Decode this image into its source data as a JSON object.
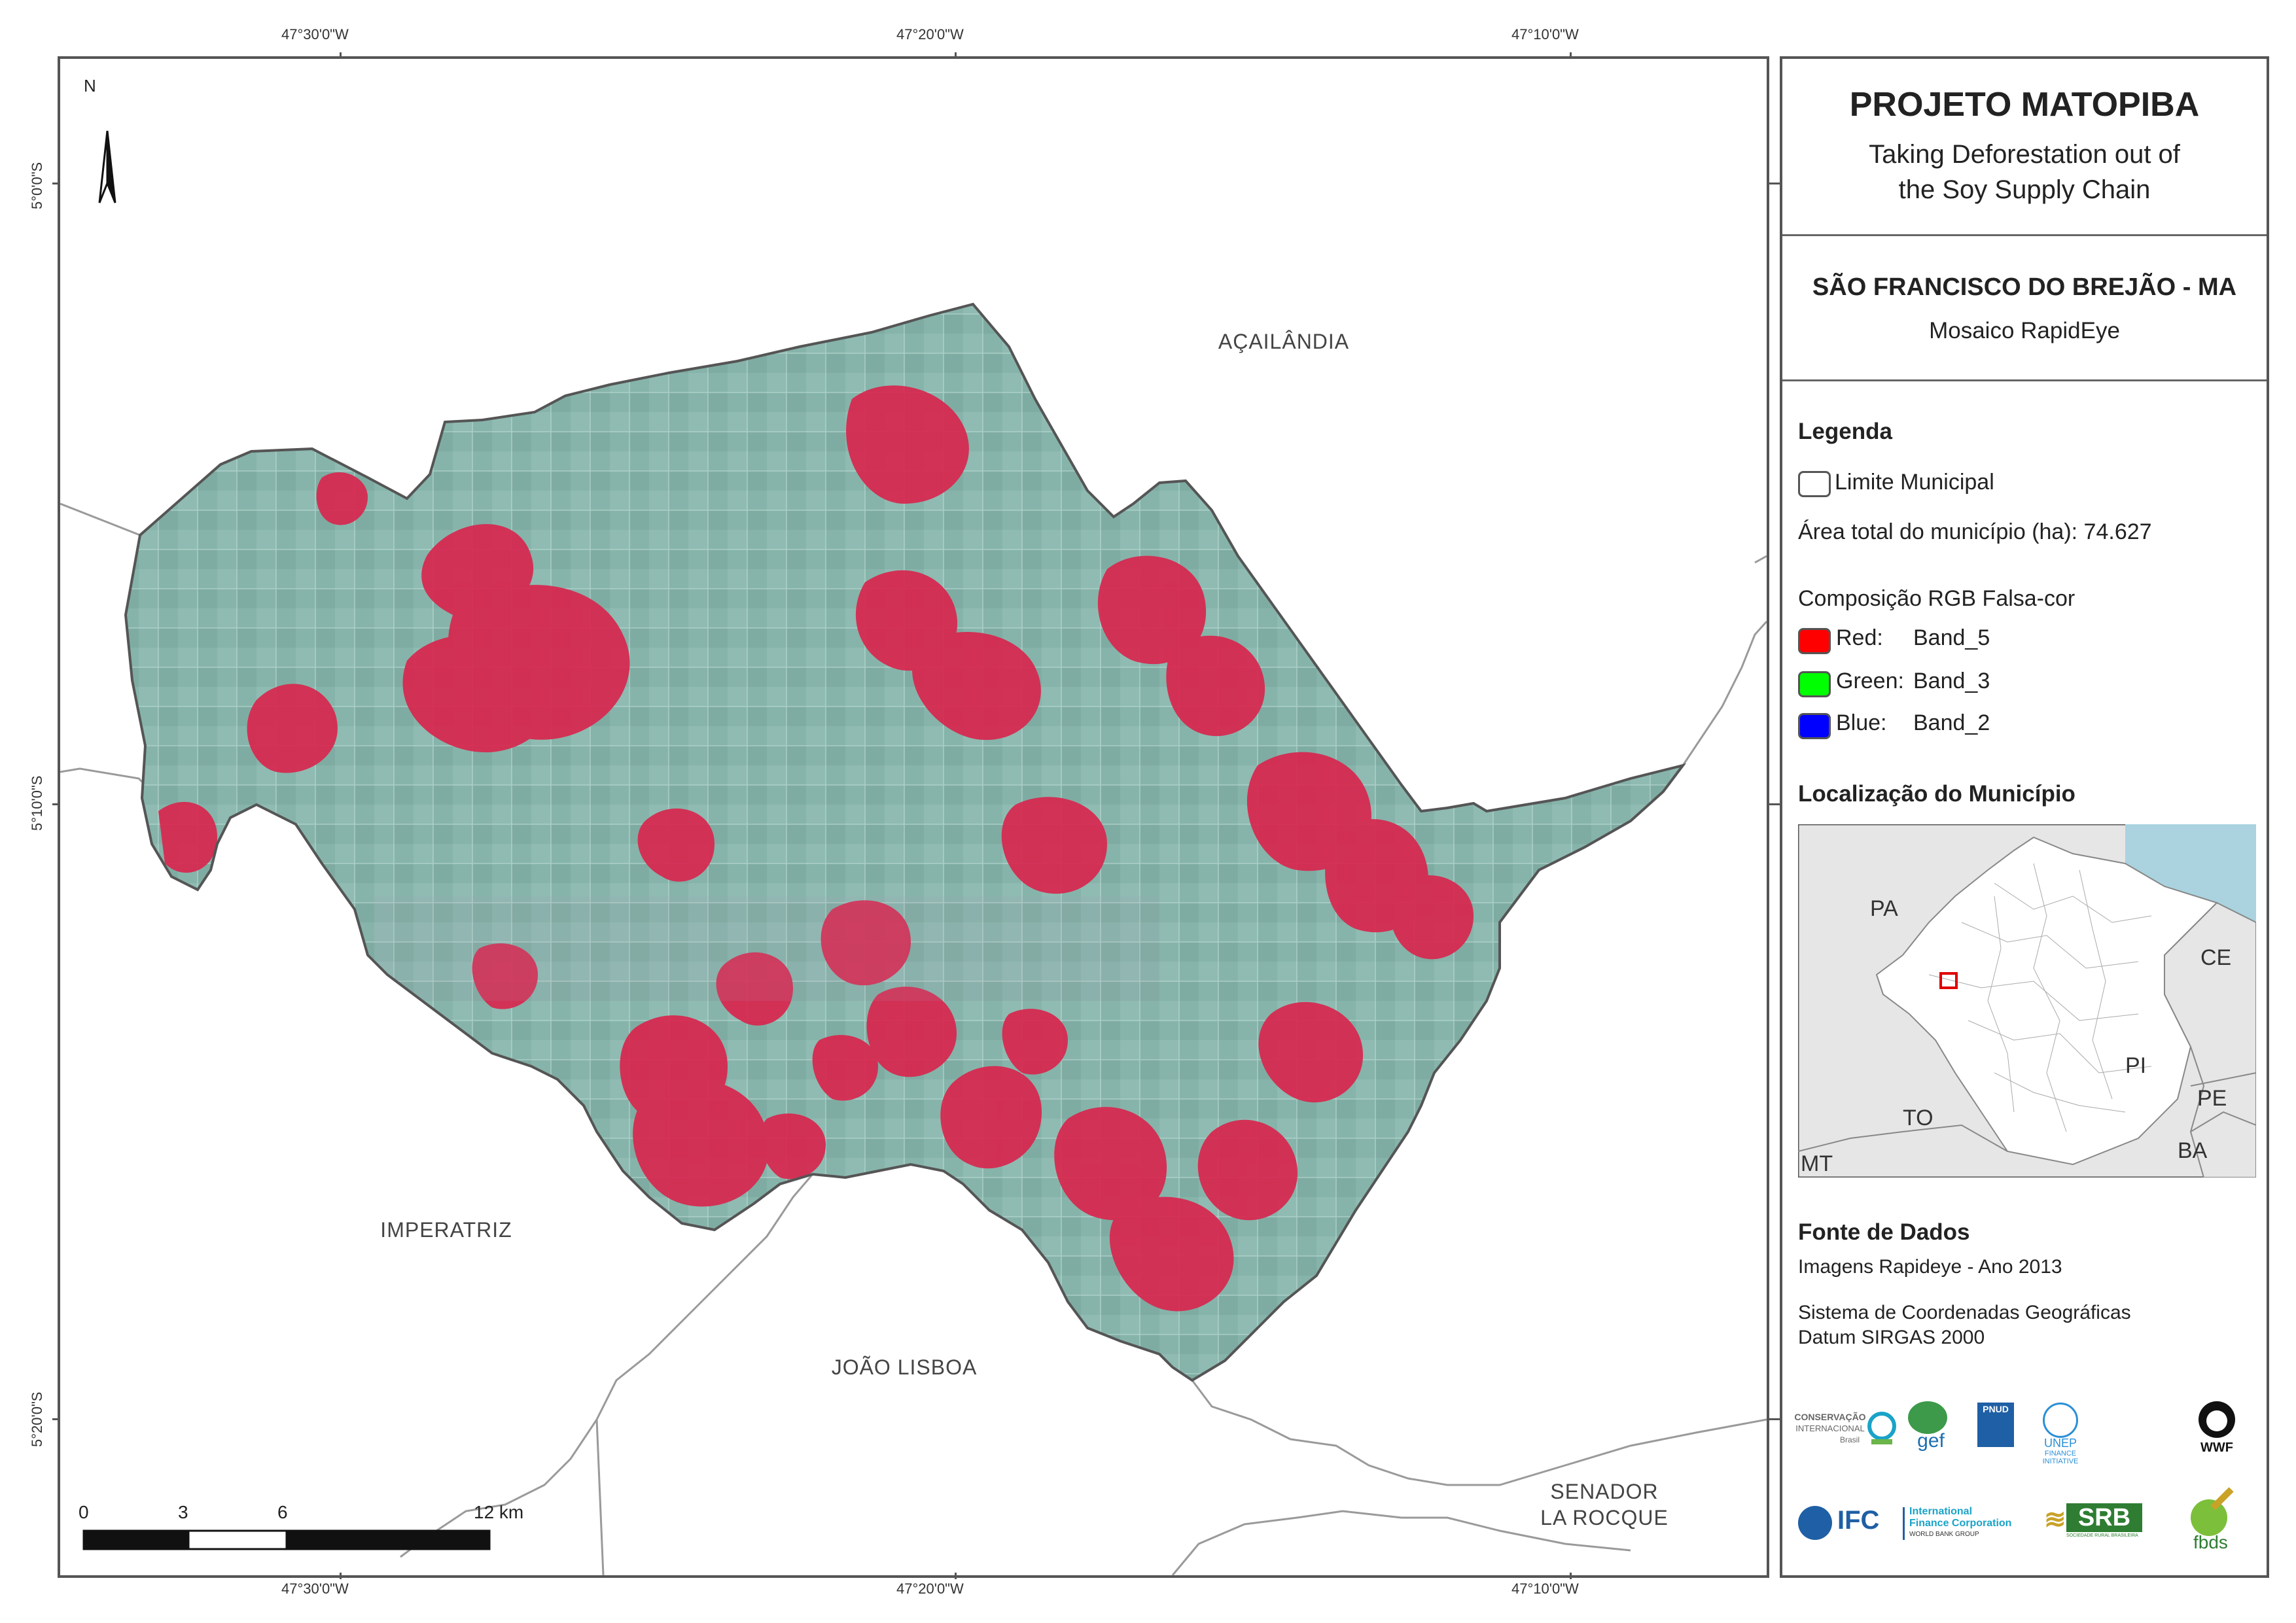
{
  "coords": {
    "top": [
      "47°30'0\"W",
      "47°20'0\"W",
      "47°10'0\"W"
    ],
    "bottom": [
      "47°30'0\"W",
      "47°20'0\"W",
      "47°10'0\"W"
    ],
    "left": [
      "5°0'0\"S",
      "5°10'0\"S",
      "5°20'0\"S"
    ]
  },
  "map": {
    "north": "N",
    "places": {
      "acailandia": "AÇAILÂNDIA",
      "imperatriz": "IMPERATRIZ",
      "joao_lisboa": "JOÃO LISBOA",
      "senador": "SENADOR",
      "la_rocque": "LA ROCQUE"
    },
    "scale": {
      "labels": [
        "0",
        "3",
        "6",
        "12 km"
      ]
    },
    "colors": {
      "base": "#84b3a8",
      "deforest": "#d8264e",
      "boundary": "#9a9a9a"
    }
  },
  "panel": {
    "title": "PROJETO MATOPIBA",
    "subtitle_line1": "Taking Deforestation out of",
    "subtitle_line2": "the Soy Supply Chain",
    "municipality": "SÃO FRANCISCO DO BREJÃO - MA",
    "mosaic": "Mosaico RapidEye",
    "legend": {
      "heading": "Legenda",
      "limite": "Limite Municipal",
      "area": "Área total do município (ha): 74.627",
      "composicao": "Composição RGB Falsa-cor",
      "bands": [
        {
          "label": "Red:",
          "band": "Band_5",
          "color": "#ff0000"
        },
        {
          "label": "Green:",
          "band": "Band_3",
          "color": "#00ff00"
        },
        {
          "label": "Blue:",
          "band": "Band_2",
          "color": "#0000ff"
        }
      ]
    },
    "localizacao": {
      "heading": "Localização do Município",
      "states": [
        "PA",
        "CE",
        "PI",
        "PE",
        "TO",
        "BA",
        "MT"
      ]
    },
    "fonte": {
      "heading": "Fonte de Dados",
      "line1": "Imagens Rapideye - Ano 2013",
      "line2": "Sistema de Coordenadas Geográficas",
      "line3": "Datum SIRGAS 2000"
    },
    "logos": {
      "ci_line1": "CONSERVAÇÃO",
      "ci_line2": "INTERNACIONAL",
      "ci_line3": "Brasil",
      "gef": "gef",
      "pnud": "PNUD",
      "unep_line1": "UNEP",
      "unep_line2": "FINANCE",
      "unep_line3": "INITIATIVE",
      "wwf": "WWF",
      "ifc": "IFC",
      "ifc_line1": "International",
      "ifc_line2": "Finance Corporation",
      "ifc_line3": "WORLD BANK GROUP",
      "srb": "SRB",
      "srb_sub": "SOCIEDADE RURAL BRASILEIRA",
      "fbds": "fbds"
    }
  }
}
